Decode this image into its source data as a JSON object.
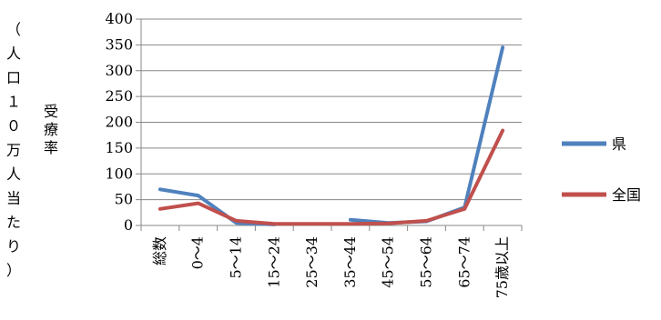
{
  "chart_data": {
    "type": "line",
    "ylabel": "受療率",
    "ylabel_unit": "（人口１０万人当たり）",
    "ylim": [
      0,
      400
    ],
    "yticks": [
      0,
      50,
      100,
      150,
      200,
      250,
      300,
      350,
      400
    ],
    "categories": [
      "総数",
      "0～4",
      "5～14",
      "15～24",
      "25～34",
      "35～44",
      "45～54",
      "55～64",
      "65～74",
      "75歳以上"
    ],
    "legend_position": "right",
    "series": [
      {
        "name": "県",
        "color": "#4F81BD",
        "values": [
          70,
          58,
          5,
          2,
          null,
          11,
          5,
          8,
          35,
          345
        ]
      },
      {
        "name": "全国",
        "color": "#C0504D",
        "values": [
          32,
          43,
          9,
          3,
          3,
          3,
          4,
          9,
          32,
          184
        ]
      }
    ]
  }
}
